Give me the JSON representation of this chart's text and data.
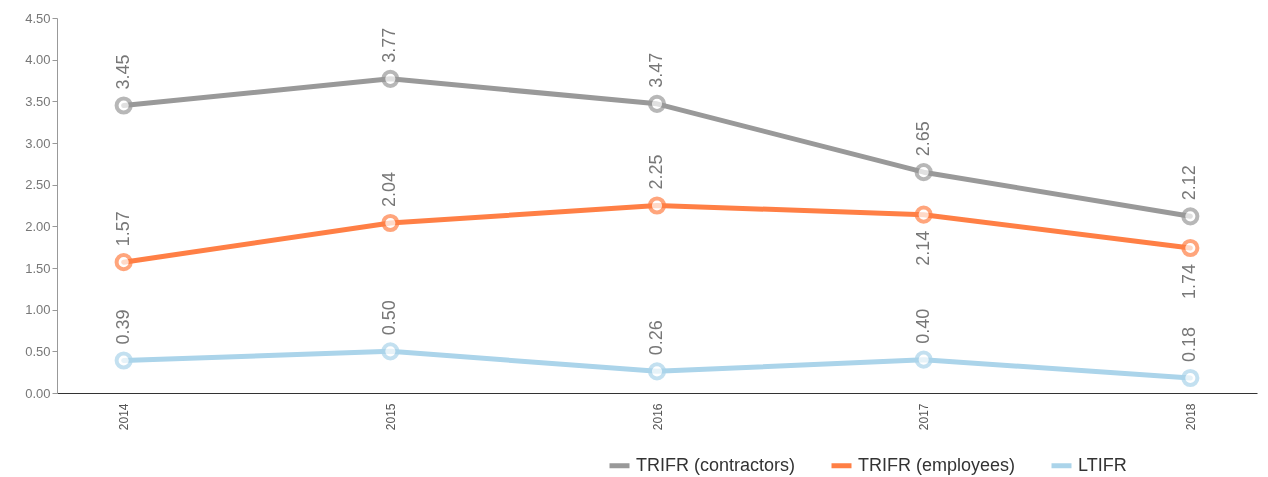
{
  "chart_data": {
    "type": "line",
    "categories": [
      "2014",
      "2015",
      "2016",
      "2017",
      "2018"
    ],
    "ylim": [
      0,
      4.5
    ],
    "yticks": [
      {
        "value": 0,
        "label": "0.00"
      },
      {
        "value": 0.5,
        "label": "0.50"
      },
      {
        "value": 1,
        "label": "1.00"
      },
      {
        "value": 1.5,
        "label": "1.50"
      },
      {
        "value": 2,
        "label": "2.00"
      },
      {
        "value": 2.5,
        "label": "2.50"
      },
      {
        "value": 3,
        "label": "3.00"
      },
      {
        "value": 3.5,
        "label": "3.50"
      },
      {
        "value": 4,
        "label": "4.00"
      },
      {
        "value": 4.5,
        "label": "4.50"
      }
    ],
    "grid": false,
    "legend": "bottom right",
    "marker": "circle",
    "line_style": "solid",
    "series": [
      {
        "name": "TRIFR (contractors)",
        "color": "#999999",
        "values": [
          3.45,
          3.77,
          3.47,
          2.65,
          2.12
        ],
        "value_labels": [
          "3.45",
          "3.77",
          "3.47",
          "2.65",
          "2.12"
        ]
      },
      {
        "name": "TRIFR (employees)",
        "color": "#ff7f45",
        "values": [
          1.57,
          2.04,
          2.25,
          2.14,
          1.74
        ],
        "value_labels": [
          "1.57",
          "2.04",
          "2.25",
          "2.14",
          "1.74"
        ]
      },
      {
        "name": "LTIFR",
        "color": "#abd4ea",
        "values": [
          0.39,
          0.5,
          0.26,
          0.4,
          0.18
        ],
        "value_labels": [
          "0.39",
          "0.50",
          "0.26",
          "0.40",
          "0.18"
        ]
      }
    ]
  }
}
